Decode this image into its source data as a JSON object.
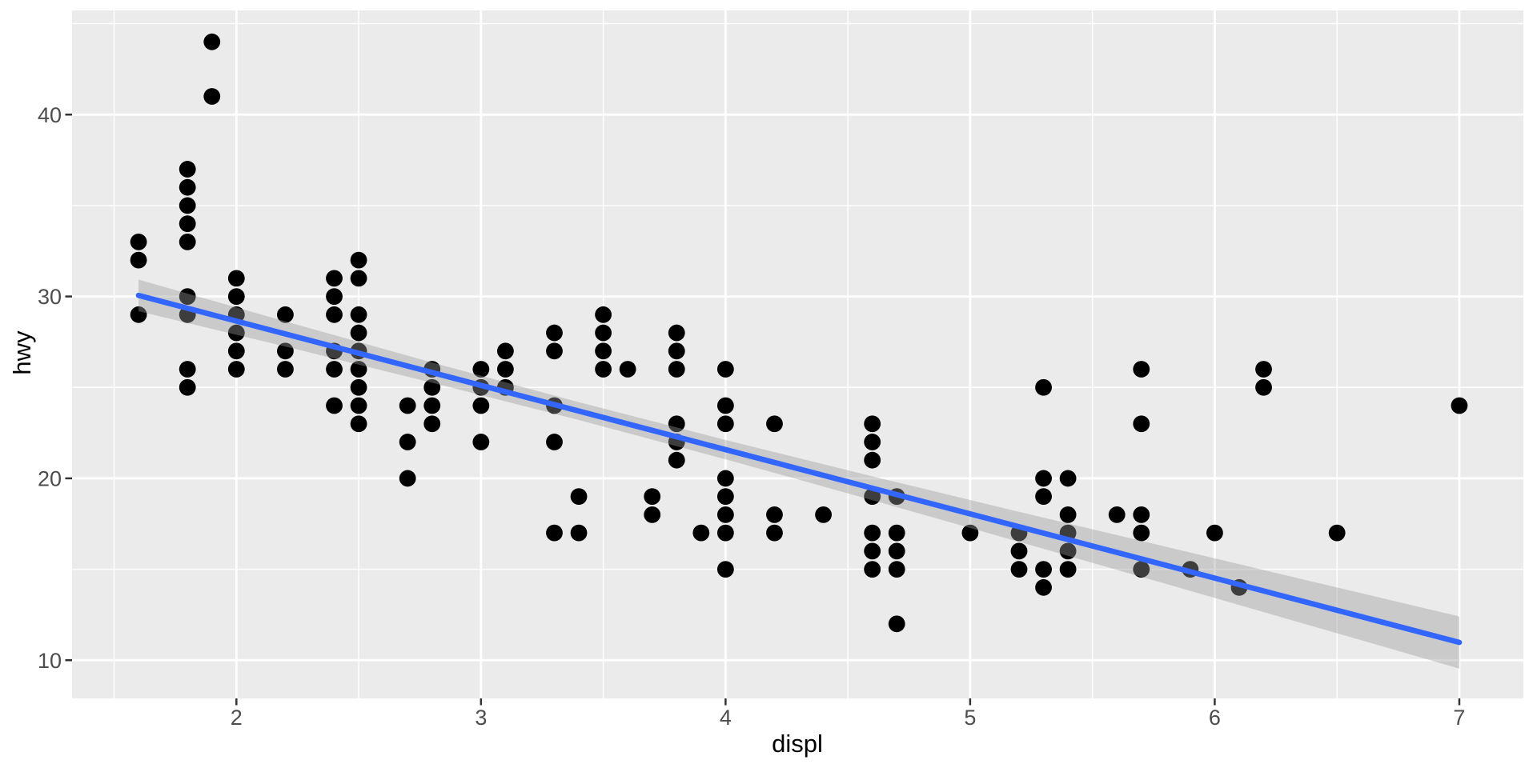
{
  "chart_data": {
    "type": "scatter",
    "title": "",
    "xlabel": "displ",
    "ylabel": "hwy",
    "legend_position": "none",
    "grid": true,
    "xlim": [
      1.328,
      7.262
    ],
    "ylim": [
      7.9,
      45.73
    ],
    "x_ticks": [
      2,
      3,
      4,
      5,
      6,
      7
    ],
    "x_minor_ticks": [
      1.5,
      2.5,
      3.5,
      4.5,
      5.5,
      6.5
    ],
    "y_ticks": [
      10,
      20,
      30,
      40
    ],
    "y_minor_ticks": [
      15,
      25,
      35,
      45
    ],
    "points": [
      [
        1.6,
        33
      ],
      [
        1.6,
        32
      ],
      [
        1.6,
        29
      ],
      [
        1.8,
        37
      ],
      [
        1.8,
        36
      ],
      [
        1.8,
        35
      ],
      [
        1.8,
        34
      ],
      [
        1.8,
        33
      ],
      [
        1.8,
        30
      ],
      [
        1.8,
        29
      ],
      [
        1.8,
        26
      ],
      [
        1.8,
        25
      ],
      [
        1.9,
        44
      ],
      [
        1.9,
        41
      ],
      [
        2.0,
        31
      ],
      [
        2.0,
        30
      ],
      [
        2.0,
        29
      ],
      [
        2.0,
        28
      ],
      [
        2.0,
        27
      ],
      [
        2.0,
        26
      ],
      [
        2.2,
        29
      ],
      [
        2.2,
        27
      ],
      [
        2.2,
        26
      ],
      [
        2.4,
        31
      ],
      [
        2.4,
        30
      ],
      [
        2.4,
        29
      ],
      [
        2.4,
        27
      ],
      [
        2.4,
        26
      ],
      [
        2.4,
        24
      ],
      [
        2.5,
        32
      ],
      [
        2.5,
        31
      ],
      [
        2.5,
        29
      ],
      [
        2.5,
        28
      ],
      [
        2.5,
        27
      ],
      [
        2.5,
        26
      ],
      [
        2.5,
        25
      ],
      [
        2.5,
        24
      ],
      [
        2.5,
        23
      ],
      [
        2.7,
        24
      ],
      [
        2.7,
        22
      ],
      [
        2.7,
        20
      ],
      [
        2.8,
        26
      ],
      [
        2.8,
        25
      ],
      [
        2.8,
        24
      ],
      [
        2.8,
        23
      ],
      [
        3.0,
        26
      ],
      [
        3.0,
        25
      ],
      [
        3.0,
        24
      ],
      [
        3.0,
        22
      ],
      [
        3.1,
        27
      ],
      [
        3.1,
        26
      ],
      [
        3.1,
        25
      ],
      [
        3.3,
        28
      ],
      [
        3.3,
        27
      ],
      [
        3.3,
        24
      ],
      [
        3.3,
        22
      ],
      [
        3.3,
        17
      ],
      [
        3.4,
        19
      ],
      [
        3.4,
        17
      ],
      [
        3.5,
        29
      ],
      [
        3.5,
        28
      ],
      [
        3.5,
        27
      ],
      [
        3.5,
        26
      ],
      [
        3.6,
        26
      ],
      [
        3.7,
        19
      ],
      [
        3.7,
        18
      ],
      [
        3.8,
        28
      ],
      [
        3.8,
        27
      ],
      [
        3.8,
        26
      ],
      [
        3.8,
        23
      ],
      [
        3.8,
        22
      ],
      [
        3.8,
        21
      ],
      [
        3.9,
        17
      ],
      [
        4.0,
        26
      ],
      [
        4.0,
        24
      ],
      [
        4.0,
        23
      ],
      [
        4.0,
        20
      ],
      [
        4.0,
        19
      ],
      [
        4.0,
        18
      ],
      [
        4.0,
        17
      ],
      [
        4.0,
        15
      ],
      [
        4.2,
        23
      ],
      [
        4.2,
        18
      ],
      [
        4.2,
        17
      ],
      [
        4.4,
        18
      ],
      [
        4.6,
        23
      ],
      [
        4.6,
        22
      ],
      [
        4.6,
        21
      ],
      [
        4.6,
        19
      ],
      [
        4.6,
        17
      ],
      [
        4.6,
        16
      ],
      [
        4.6,
        15
      ],
      [
        4.7,
        19
      ],
      [
        4.7,
        17
      ],
      [
        4.7,
        16
      ],
      [
        4.7,
        15
      ],
      [
        4.7,
        12
      ],
      [
        5.0,
        17
      ],
      [
        5.2,
        17
      ],
      [
        5.2,
        16
      ],
      [
        5.2,
        15
      ],
      [
        5.3,
        25
      ],
      [
        5.3,
        20
      ],
      [
        5.3,
        19
      ],
      [
        5.3,
        15
      ],
      [
        5.3,
        14
      ],
      [
        5.4,
        20
      ],
      [
        5.4,
        18
      ],
      [
        5.4,
        17
      ],
      [
        5.4,
        16
      ],
      [
        5.4,
        15
      ],
      [
        5.6,
        18
      ],
      [
        5.7,
        26
      ],
      [
        5.7,
        23
      ],
      [
        5.7,
        18
      ],
      [
        5.7,
        17
      ],
      [
        5.7,
        15
      ],
      [
        5.9,
        15
      ],
      [
        6.0,
        17
      ],
      [
        6.1,
        14
      ],
      [
        6.2,
        26
      ],
      [
        6.2,
        25
      ],
      [
        6.5,
        17
      ],
      [
        7.0,
        24
      ]
    ],
    "smooth": {
      "method": "lm",
      "line": {
        "x1": 1.6,
        "y1": 30.06,
        "x2": 7.0,
        "y2": 10.98
      },
      "ribbon": [
        {
          "x": 1.6,
          "lo": 29.19,
          "hi": 30.93
        },
        {
          "x": 2.2,
          "lo": 27.25,
          "hi": 28.63
        },
        {
          "x": 2.8,
          "lo": 25.26,
          "hi": 26.37
        },
        {
          "x": 3.4,
          "lo": 23.21,
          "hi": 24.19
        },
        {
          "x": 4.0,
          "lo": 21.05,
          "hi": 22.11
        },
        {
          "x": 4.6,
          "lo": 18.8,
          "hi": 20.11
        },
        {
          "x": 5.2,
          "lo": 16.51,
          "hi": 18.16
        },
        {
          "x": 5.8,
          "lo": 14.2,
          "hi": 16.24
        },
        {
          "x": 6.4,
          "lo": 11.87,
          "hi": 14.32
        },
        {
          "x": 7.0,
          "lo": 9.54,
          "hi": 12.41
        }
      ]
    },
    "colors": {
      "outer_background": "#FFFFFF",
      "panel_background": "#EBEBEB",
      "gridline": "#FFFFFF",
      "point": "#000000",
      "smooth_line": "#3366FF",
      "ribbon_fill": "#999999",
      "ribbon_alpha": 0.4,
      "tick_mark": "#333333",
      "tick_label": "#4D4D4D",
      "axis_title": "#000000"
    }
  }
}
